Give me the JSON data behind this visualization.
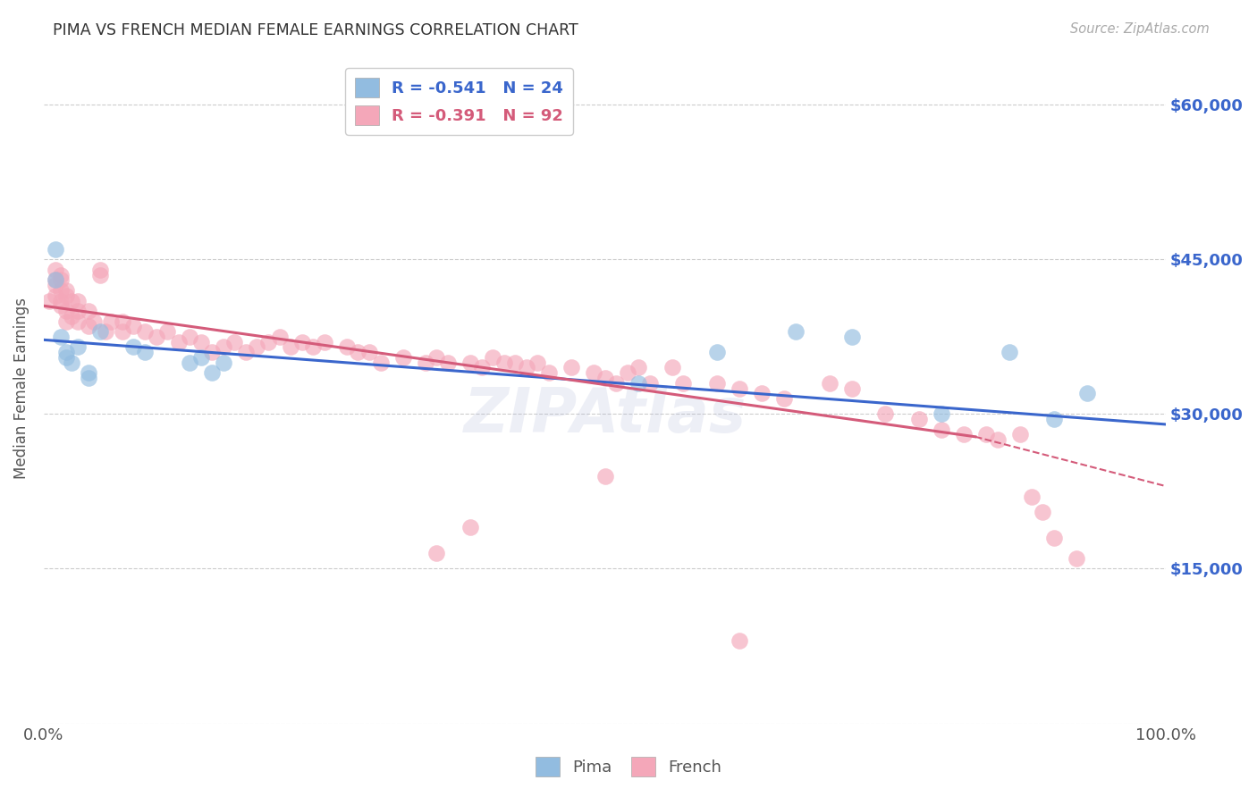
{
  "title": "PIMA VS FRENCH MEDIAN FEMALE EARNINGS CORRELATION CHART",
  "source": "Source: ZipAtlas.com",
  "ylabel": "Median Female Earnings",
  "x_min": 0.0,
  "x_max": 1.0,
  "y_min": 0,
  "y_max": 65000,
  "yticks": [
    0,
    15000,
    30000,
    45000,
    60000
  ],
  "ytick_labels": [
    "",
    "$15,000",
    "$30,000",
    "$45,000",
    "$60,000"
  ],
  "xtick_labels": [
    "0.0%",
    "100.0%"
  ],
  "pima_color": "#92bce0",
  "french_color": "#f4a7b9",
  "pima_line_color": "#3a66cc",
  "french_line_color": "#d45b7a",
  "legend_label_pima": "R = -0.541   N = 24",
  "legend_label_french": "R = -0.391   N = 92",
  "watermark": "ZIPAtlas",
  "background_color": "#ffffff",
  "grid_color": "#cccccc",
  "pima_line_x0": 0.0,
  "pima_line_y0": 37200,
  "pima_line_x1": 1.0,
  "pima_line_y1": 29000,
  "french_line_x0": 0.0,
  "french_line_y0": 40500,
  "french_line_solid_x1": 0.83,
  "french_line_solid_y1": 27800,
  "french_line_dash_x1": 1.0,
  "french_line_dash_y1": 23000,
  "pima_x": [
    0.01,
    0.01,
    0.015,
    0.02,
    0.02,
    0.025,
    0.03,
    0.04,
    0.04,
    0.05,
    0.08,
    0.09,
    0.53,
    0.6,
    0.67,
    0.72,
    0.8,
    0.86,
    0.9,
    0.93,
    0.13,
    0.14,
    0.15,
    0.16
  ],
  "pima_y": [
    46000,
    43000,
    37500,
    36000,
    35500,
    35000,
    36500,
    34000,
    33500,
    38000,
    36500,
    36000,
    33000,
    36000,
    38000,
    37500,
    30000,
    36000,
    29500,
    32000,
    35000,
    35500,
    34000,
    35000
  ],
  "french_x": [
    0.005,
    0.01,
    0.01,
    0.01,
    0.01,
    0.015,
    0.015,
    0.015,
    0.015,
    0.015,
    0.02,
    0.02,
    0.02,
    0.02,
    0.025,
    0.025,
    0.03,
    0.03,
    0.03,
    0.04,
    0.04,
    0.045,
    0.05,
    0.05,
    0.055,
    0.06,
    0.07,
    0.07,
    0.08,
    0.09,
    0.1,
    0.11,
    0.12,
    0.13,
    0.14,
    0.15,
    0.16,
    0.17,
    0.18,
    0.19,
    0.2,
    0.21,
    0.22,
    0.23,
    0.24,
    0.25,
    0.27,
    0.28,
    0.29,
    0.3,
    0.32,
    0.34,
    0.35,
    0.36,
    0.38,
    0.39,
    0.4,
    0.41,
    0.42,
    0.43,
    0.44,
    0.45,
    0.47,
    0.49,
    0.5,
    0.51,
    0.52,
    0.53,
    0.54,
    0.56,
    0.57,
    0.6,
    0.62,
    0.64,
    0.66,
    0.7,
    0.72,
    0.75,
    0.78,
    0.8,
    0.82,
    0.84,
    0.85,
    0.87,
    0.88,
    0.89,
    0.9,
    0.92,
    0.5,
    0.38,
    0.35,
    0.62
  ],
  "french_y": [
    41000,
    44000,
    43000,
    42500,
    41500,
    43500,
    43000,
    42000,
    41000,
    40500,
    42000,
    41500,
    40000,
    39000,
    41000,
    39500,
    41000,
    40000,
    39000,
    40000,
    38500,
    39000,
    44000,
    43500,
    38000,
    39000,
    39000,
    38000,
    38500,
    38000,
    37500,
    38000,
    37000,
    37500,
    37000,
    36000,
    36500,
    37000,
    36000,
    36500,
    37000,
    37500,
    36500,
    37000,
    36500,
    37000,
    36500,
    36000,
    36000,
    35000,
    35500,
    35000,
    35500,
    35000,
    35000,
    34500,
    35500,
    35000,
    35000,
    34500,
    35000,
    34000,
    34500,
    34000,
    33500,
    33000,
    34000,
    34500,
    33000,
    34500,
    33000,
    33000,
    32500,
    32000,
    31500,
    33000,
    32500,
    30000,
    29500,
    28500,
    28000,
    28000,
    27500,
    28000,
    22000,
    20500,
    18000,
    16000,
    24000,
    19000,
    16500,
    8000
  ]
}
